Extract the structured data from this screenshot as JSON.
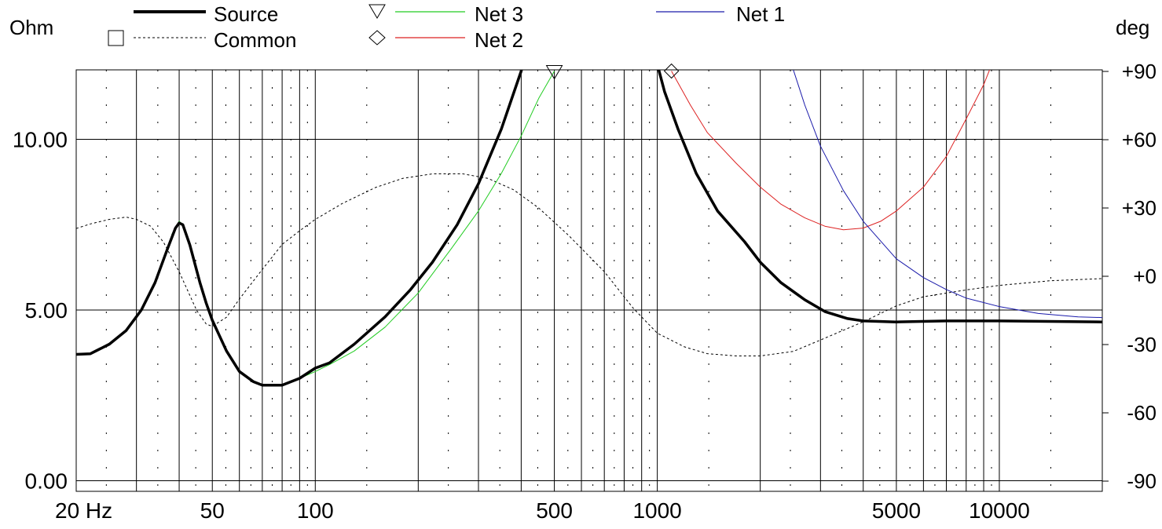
{
  "chart_data": {
    "type": "line",
    "y_left_unit": "Ohm",
    "y_right_unit": "deg",
    "x_scale": "log",
    "x_range": [
      20,
      20000
    ],
    "y_left_range": [
      0,
      12
    ],
    "y_right_range": [
      -90,
      90
    ],
    "grid": true,
    "legend_position": "top",
    "x_ticks": [
      {
        "value": 20,
        "label": "20 Hz"
      },
      {
        "value": 50,
        "label": "50"
      },
      {
        "value": 100,
        "label": "100"
      },
      {
        "value": 500,
        "label": "500"
      },
      {
        "value": 1000,
        "label": "1000"
      },
      {
        "value": 5000,
        "label": "5000"
      },
      {
        "value": 10000,
        "label": "10000"
      }
    ],
    "y_left_ticks": [
      {
        "value": 0,
        "label": "0.00"
      },
      {
        "value": 5,
        "label": "5.00"
      },
      {
        "value": 10,
        "label": "10.00"
      }
    ],
    "y_right_ticks": [
      {
        "value": 90,
        "label": "+90"
      },
      {
        "value": 60,
        "label": "+60"
      },
      {
        "value": 30,
        "label": "+30"
      },
      {
        "value": 0,
        "label": "+0"
      },
      {
        "value": -30,
        "label": "-30"
      },
      {
        "value": -60,
        "label": "-60"
      },
      {
        "value": -90,
        "label": "-90"
      }
    ],
    "series": [
      {
        "name": "Source",
        "color": "#000000",
        "width": 3.5,
        "axis": "left",
        "dash": "",
        "points": [
          [
            20,
            3.7
          ],
          [
            22,
            3.72
          ],
          [
            25,
            4.0
          ],
          [
            28,
            4.4
          ],
          [
            31,
            5.0
          ],
          [
            34,
            5.8
          ],
          [
            37,
            6.8
          ],
          [
            39,
            7.4
          ],
          [
            40,
            7.55
          ],
          [
            41,
            7.5
          ],
          [
            43,
            6.9
          ],
          [
            46,
            5.8
          ],
          [
            48,
            5.2
          ],
          [
            50,
            4.7
          ],
          [
            55,
            3.8
          ],
          [
            60,
            3.2
          ],
          [
            66,
            2.9
          ],
          [
            70,
            2.8
          ],
          [
            80,
            2.8
          ],
          [
            90,
            3.0
          ],
          [
            100,
            3.3
          ],
          [
            110,
            3.45
          ],
          [
            130,
            4.0
          ],
          [
            160,
            4.8
          ],
          [
            190,
            5.6
          ],
          [
            220,
            6.4
          ],
          [
            260,
            7.5
          ],
          [
            300,
            8.7
          ],
          [
            350,
            10.3
          ],
          [
            400,
            12.0
          ],
          [
            430,
            13.3
          ]
        ]
      },
      {
        "name": "Source",
        "color": "#000000",
        "width": 3.5,
        "axis": "left",
        "dash": "",
        "points": [
          [
            1000,
            12.2
          ],
          [
            1050,
            11.4
          ],
          [
            1150,
            10.3
          ],
          [
            1300,
            9.0
          ],
          [
            1500,
            7.9
          ],
          [
            1800,
            7.0
          ],
          [
            2000,
            6.4
          ],
          [
            2300,
            5.8
          ],
          [
            2700,
            5.3
          ],
          [
            3100,
            4.95
          ],
          [
            3600,
            4.75
          ],
          [
            4000,
            4.68
          ],
          [
            5000,
            4.65
          ],
          [
            7000,
            4.68
          ],
          [
            10000,
            4.68
          ],
          [
            20000,
            4.65
          ]
        ]
      },
      {
        "name": "Common",
        "color": "#000000",
        "width": 1,
        "axis": "right",
        "dash": "3,3",
        "points": [
          [
            20,
            21
          ],
          [
            22,
            23
          ],
          [
            25,
            25
          ],
          [
            28,
            26
          ],
          [
            30,
            25
          ],
          [
            33,
            22
          ],
          [
            36,
            15
          ],
          [
            40,
            2
          ],
          [
            45,
            -15
          ],
          [
            48,
            -21
          ],
          [
            50,
            -22
          ],
          [
            55,
            -18
          ],
          [
            60,
            -10
          ],
          [
            70,
            3
          ],
          [
            80,
            14
          ],
          [
            90,
            20
          ],
          [
            100,
            25
          ],
          [
            120,
            32
          ],
          [
            150,
            39
          ],
          [
            180,
            43
          ],
          [
            220,
            45
          ],
          [
            270,
            45
          ],
          [
            320,
            43
          ],
          [
            380,
            38
          ],
          [
            450,
            30
          ],
          [
            550,
            18
          ],
          [
            700,
            2
          ],
          [
            850,
            -14
          ],
          [
            1000,
            -25
          ],
          [
            1200,
            -31
          ],
          [
            1400,
            -34
          ],
          [
            1700,
            -35
          ],
          [
            2000,
            -35
          ],
          [
            2500,
            -33
          ],
          [
            3000,
            -28
          ],
          [
            4000,
            -20
          ],
          [
            5000,
            -13
          ],
          [
            6000,
            -9
          ],
          [
            8000,
            -6
          ],
          [
            10000,
            -4
          ],
          [
            14000,
            -2
          ],
          [
            20000,
            -1
          ]
        ]
      },
      {
        "name": "Net 3",
        "color": "#22cc22",
        "width": 1,
        "axis": "left",
        "dash": "",
        "points": [
          [
            38,
            7.2
          ],
          [
            40,
            7.6
          ],
          [
            41,
            7.5
          ],
          [
            43,
            6.9
          ],
          [
            46,
            5.8
          ],
          [
            48,
            5.2
          ],
          [
            50,
            4.7
          ],
          [
            55,
            3.8
          ],
          [
            60,
            3.2
          ],
          [
            66,
            2.9
          ],
          [
            70,
            2.8
          ],
          [
            80,
            2.8
          ],
          [
            90,
            3.0
          ],
          [
            100,
            3.2
          ],
          [
            110,
            3.4
          ],
          [
            130,
            3.8
          ],
          [
            160,
            4.5
          ],
          [
            200,
            5.5
          ],
          [
            250,
            6.8
          ],
          [
            300,
            7.9
          ],
          [
            350,
            9.0
          ],
          [
            400,
            10.1
          ],
          [
            450,
            11.2
          ],
          [
            500,
            12.0
          ]
        ]
      },
      {
        "name": "Net 2",
        "color": "#dd2222",
        "width": 1,
        "axis": "left",
        "dash": "",
        "points": [
          [
            1100,
            12.0
          ],
          [
            1250,
            11.0
          ],
          [
            1400,
            10.2
          ],
          [
            1700,
            9.3
          ],
          [
            2000,
            8.6
          ],
          [
            2300,
            8.1
          ],
          [
            2700,
            7.7
          ],
          [
            3100,
            7.45
          ],
          [
            3500,
            7.35
          ],
          [
            4000,
            7.4
          ],
          [
            4500,
            7.6
          ],
          [
            5000,
            7.9
          ],
          [
            6000,
            8.6
          ],
          [
            7000,
            9.5
          ],
          [
            8000,
            10.6
          ],
          [
            9000,
            11.6
          ],
          [
            9600,
            12.3
          ]
        ]
      },
      {
        "name": "Net 1",
        "color": "#1a1aaa",
        "width": 1,
        "axis": "left",
        "dash": "",
        "points": [
          [
            2450,
            12.3
          ],
          [
            2700,
            11.0
          ],
          [
            3000,
            9.8
          ],
          [
            3500,
            8.5
          ],
          [
            4000,
            7.6
          ],
          [
            5000,
            6.5
          ],
          [
            6000,
            5.95
          ],
          [
            7000,
            5.6
          ],
          [
            8000,
            5.35
          ],
          [
            10000,
            5.1
          ],
          [
            13000,
            4.9
          ],
          [
            17000,
            4.8
          ],
          [
            20000,
            4.78
          ]
        ]
      }
    ],
    "markers": [
      {
        "series": "Net 3",
        "shape": "triangle-down",
        "x": 500,
        "y": 12.0
      },
      {
        "series": "Net 2",
        "shape": "diamond",
        "x": 1100,
        "y": 12.0
      }
    ],
    "legend": [
      {
        "label": "Source",
        "color": "#000000",
        "style": "thick",
        "marker": ""
      },
      {
        "label": "Common",
        "color": "#000000",
        "style": "dash",
        "marker": "square"
      },
      {
        "label": "Net 3",
        "color": "#22cc22",
        "style": "thin",
        "marker": "triangle-down"
      },
      {
        "label": "Net 2",
        "color": "#dd2222",
        "style": "thin",
        "marker": "diamond"
      },
      {
        "label": "Net 1",
        "color": "#1a1aaa",
        "style": "thin",
        "marker": ""
      }
    ]
  }
}
